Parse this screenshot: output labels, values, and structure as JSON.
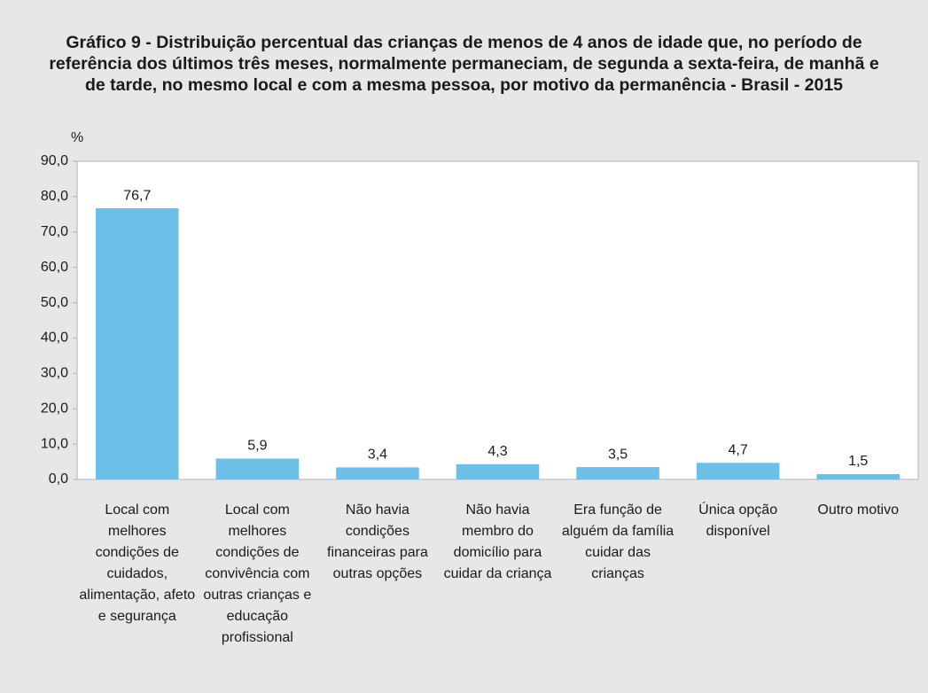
{
  "chart_data": {
    "type": "bar",
    "title": "Gráfico 9 - Distribuição percentual das crianças de menos de 4 anos de idade que, no período de referência dos últimos três meses, normalmente permaneciam, de segunda a sexta-feira, de manhã e de tarde, no mesmo local e com a mesma pessoa, por motivo da permanência - Brasil - 2015",
    "y_axis_label": "%",
    "categories": [
      "Local com melhores condições de cuidados, alimentação, afeto e segurança",
      "Local com melhores condições de convivência com outras crianças e educação profissional",
      "Não havia condições financeiras para outras opções",
      "Não havia membro do domicílio para cuidar da criança",
      "Era função de alguém da família cuidar das crianças",
      "Única opção disponível",
      "Outro motivo"
    ],
    "values": [
      76.7,
      5.9,
      3.4,
      4.3,
      3.5,
      4.7,
      1.5
    ],
    "value_labels": [
      "76,7",
      "5,9",
      "3,4",
      "4,3",
      "3,5",
      "4,7",
      "1,5"
    ],
    "color": "#6cc0e8",
    "ylim": [
      0,
      90
    ],
    "yticks": [
      {
        "value": 0,
        "label": "0,0"
      },
      {
        "value": 10,
        "label": "10,0"
      },
      {
        "value": 20,
        "label": "20,0"
      },
      {
        "value": 30,
        "label": "30,0"
      },
      {
        "value": 40,
        "label": "40,0"
      },
      {
        "value": 50,
        "label": "50,0"
      },
      {
        "value": 60,
        "label": "60,0"
      },
      {
        "value": 70,
        "label": "70,0"
      },
      {
        "value": 80,
        "label": "80,0"
      },
      {
        "value": 90,
        "label": "90,0"
      }
    ],
    "grid": false
  }
}
